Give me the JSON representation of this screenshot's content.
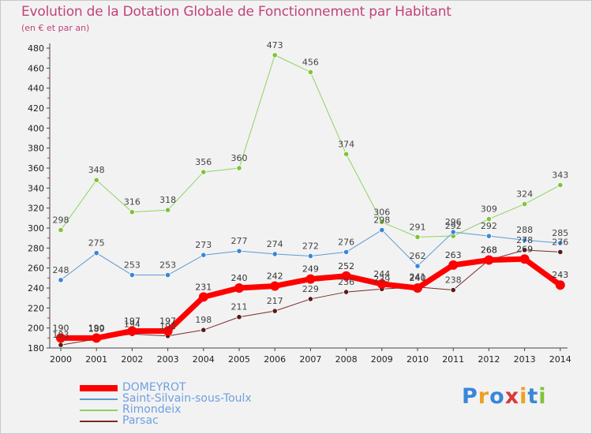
{
  "header": {
    "title": "Evolution de la Dotation Globale de Fonctionnement par Habitant",
    "subtitle": "(en € et par an)"
  },
  "logo": {
    "text": "Proxiti",
    "letters": [
      {
        "ch": "P",
        "color": "#3a86d8"
      },
      {
        "ch": "r",
        "color": "#f0a020"
      },
      {
        "ch": "o",
        "color": "#3a86d8"
      },
      {
        "ch": "x",
        "color": "#d83a3a"
      },
      {
        "ch": "i",
        "color": "#f0a020"
      },
      {
        "ch": "t",
        "color": "#3a86d8"
      },
      {
        "ch": "i",
        "color": "#7cc43a"
      }
    ]
  },
  "chart_data": {
    "type": "line",
    "title": "Evolution de la Dotation Globale de Fonctionnement par Habitant",
    "subtitle": "(en € et par an)",
    "x": [
      2000,
      2001,
      2002,
      2003,
      2004,
      2005,
      2006,
      2007,
      2008,
      2009,
      2010,
      2011,
      2012,
      2013,
      2014
    ],
    "ylim": [
      180,
      480
    ],
    "ytick_step": 20,
    "grid": false,
    "legend_position": "bottom-left",
    "series": [
      {
        "name": "Rimondeix",
        "color": "#8cd460",
        "marker_color": "#7cc43a",
        "label_color": "#444444",
        "width": 1,
        "values": [
          298,
          348,
          316,
          318,
          356,
          360,
          473,
          456,
          374,
          306,
          291,
          292,
          309,
          324,
          343
        ]
      },
      {
        "name": "Saint-Silvain-sous-Toulx",
        "color": "#5b9bd5",
        "marker_color": "#3a86d8",
        "label_color": "#444444",
        "width": 1,
        "values": [
          248,
          275,
          253,
          253,
          273,
          277,
          274,
          272,
          276,
          298,
          262,
          296,
          292,
          288,
          285
        ]
      },
      {
        "name": "Parsac",
        "color": "#7a2a2a",
        "marker_color": "#5a1a1a",
        "label_color": "#444444",
        "width": 1,
        "values": [
          183,
          189,
          194,
          192,
          198,
          211,
          217,
          229,
          236,
          239,
          241,
          238,
          268,
          278,
          276
        ]
      },
      {
        "name": "DOMEYROT",
        "color": "#ff0000",
        "marker_color": "#ff0000",
        "label_color": "#333333",
        "width": 7,
        "values": [
          190,
          190,
          197,
          197,
          231,
          240,
          242,
          249,
          252,
          244,
          240,
          263,
          268,
          269,
          243
        ]
      }
    ],
    "legend_order": [
      "DOMEYROT",
      "Saint-Silvain-sous-Toulx",
      "Rimondeix",
      "Parsac"
    ]
  }
}
